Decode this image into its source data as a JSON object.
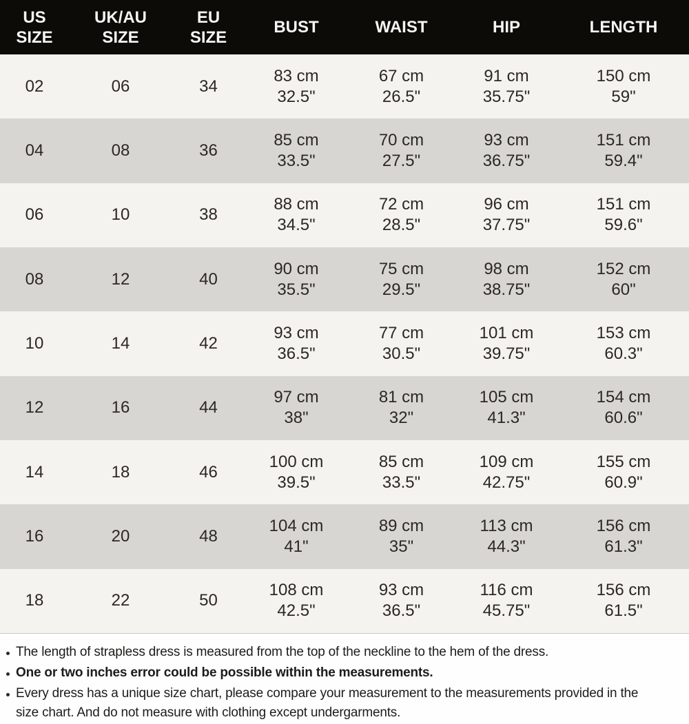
{
  "table": {
    "headers": [
      "US\nSIZE",
      "UK/AU\nSIZE",
      "EU\nSIZE",
      "BUST",
      "WAIST",
      "HIP",
      "LENGTH"
    ],
    "rows": [
      [
        "02",
        "06",
        "34",
        "83 cm\n32.5\"",
        "67 cm\n26.5\"",
        "91 cm\n35.75\"",
        "150 cm\n59\""
      ],
      [
        "04",
        "08",
        "36",
        "85 cm\n33.5\"",
        "70 cm\n27.5\"",
        "93 cm\n36.75\"",
        "151 cm\n59.4\""
      ],
      [
        "06",
        "10",
        "38",
        "88 cm\n34.5\"",
        "72 cm\n28.5\"",
        "96 cm\n37.75\"",
        "151 cm\n59.6\""
      ],
      [
        "08",
        "12",
        "40",
        "90 cm\n35.5\"",
        "75 cm\n29.5\"",
        "98 cm\n38.75\"",
        "152 cm\n60\""
      ],
      [
        "10",
        "14",
        "42",
        "93 cm\n36.5\"",
        "77 cm\n30.5\"",
        "101 cm\n39.75\"",
        "153 cm\n60.3\""
      ],
      [
        "12",
        "16",
        "44",
        "97 cm\n38\"",
        "81 cm\n32\"",
        "105 cm\n41.3\"",
        "154 cm\n60.6\""
      ],
      [
        "14",
        "18",
        "46",
        "100 cm\n39.5\"",
        "85 cm\n33.5\"",
        "109 cm\n42.75\"",
        "155 cm\n60.9\""
      ],
      [
        "16",
        "20",
        "48",
        "104 cm\n41\"",
        "89 cm\n35\"",
        "113 cm\n44.3\"",
        "156 cm\n61.3\""
      ],
      [
        "18",
        "22",
        "50",
        "108 cm\n42.5\"",
        "93 cm\n36.5\"",
        "116 cm\n45.75\"",
        "156 cm\n61.5\""
      ]
    ],
    "colors": {
      "header_bg": "#0d0b08",
      "header_text": "#f7f5f2",
      "row_odd_bg": "#f5f3ef",
      "row_even_bg": "#d8d6d3",
      "cell_text": "#2b2824"
    }
  },
  "notes": [
    {
      "text": "The length of strapless dress is measured from the top of the neckline to the hem of the dress.",
      "bold": false
    },
    {
      "text": "One or two inches error could be possible within the measurements.",
      "bold": true
    },
    {
      "text": "Every dress has a unique size chart, please compare your measurement to the measurements provided in the\nsize chart. And do not measure with clothing except undergarments.",
      "bold": false
    }
  ]
}
